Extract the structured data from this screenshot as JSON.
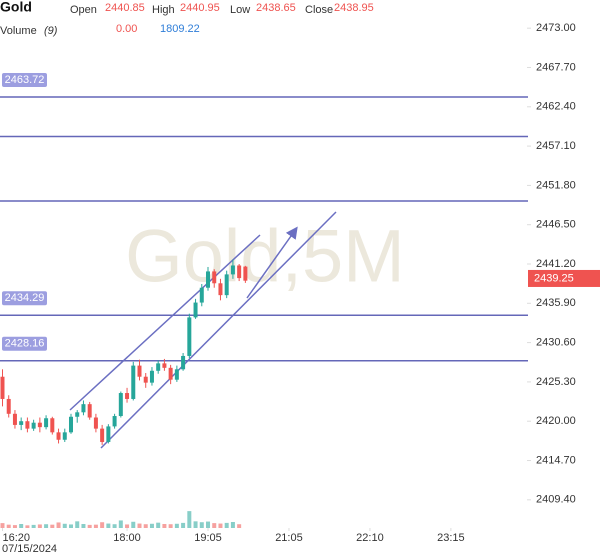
{
  "chart_data": {
    "type": "candlestick",
    "title": "Gold",
    "watermark": "Gold,5M",
    "legend_labels": {
      "open": "Open",
      "high": "High",
      "low": "Low",
      "close": "Close"
    },
    "volume_label": "Volume",
    "volume_period_label": "(9)",
    "volume_ma": 1809.22,
    "date_label": "07/15/2024",
    "up_color": "#26a69a",
    "down_color": "#ef5350",
    "level_color": "#6467b8",
    "open": [
      2426,
      2423,
      2421,
      2419.5,
      2420,
      2419,
      2419.8,
      2419.2,
      2420.4,
      2418.5,
      2417.5,
      2418.5,
      2420.6,
      2421.2,
      2422.3,
      2420.5,
      2419,
      2417.2,
      2419.3,
      2420.7,
      2423.8,
      2423,
      2427.5,
      2426,
      2425.2,
      2426.8,
      2427.8,
      2427.2,
      2425.6,
      2427,
      2428.8,
      2434,
      2436,
      2438,
      2440.2,
      2438.6,
      2437,
      2439.8,
      2441,
      2440.85
    ],
    "high": [
      2427,
      2423.5,
      2421.5,
      2420.5,
      2420.5,
      2420.2,
      2420.5,
      2420.8,
      2420.6,
      2419,
      2419,
      2421,
      2421.5,
      2422.8,
      2422.6,
      2421,
      2419.5,
      2419.6,
      2421,
      2424,
      2424.5,
      2428,
      2428.3,
      2426.5,
      2427.3,
      2428.2,
      2428.4,
      2427.6,
      2427.5,
      2429.2,
      2434.5,
      2436.5,
      2438.5,
      2440.8,
      2440.5,
      2439.2,
      2440.3,
      2441.8,
      2441.2,
      2440.95
    ],
    "low": [
      2422,
      2420.5,
      2419,
      2418.8,
      2418.5,
      2418.7,
      2418.5,
      2418.9,
      2418.2,
      2417,
      2417.2,
      2418.3,
      2419.8,
      2420.8,
      2420.2,
      2418.5,
      2416.8,
      2417,
      2419,
      2420.5,
      2422.5,
      2422.8,
      2425.5,
      2424.5,
      2424.8,
      2426.4,
      2426.8,
      2425,
      2425.3,
      2426.8,
      2428.5,
      2433.8,
      2435.5,
      2437.6,
      2438,
      2436.3,
      2436.6,
      2439.2,
      2438.9,
      2438.65
    ],
    "close": [
      2423,
      2421,
      2419.5,
      2420,
      2419,
      2419.8,
      2419.2,
      2420.4,
      2418.5,
      2417.5,
      2418.5,
      2420.6,
      2421.2,
      2422.3,
      2420.5,
      2419,
      2417.2,
      2419.3,
      2420.7,
      2423.8,
      2423,
      2427.5,
      2426,
      2425.2,
      2426.8,
      2427.8,
      2427.2,
      2425.6,
      2427,
      2428.8,
      2434,
      2436,
      2438,
      2440.2,
      2438.6,
      2437,
      2439.8,
      2441,
      2439.3,
      2438.95
    ],
    "volume": [
      2200,
      1500,
      1300,
      1800,
      1200,
      1400,
      1600,
      1700,
      1500,
      2500,
      1900,
      1600,
      3000,
      1800,
      1400,
      1500,
      2600,
      2000,
      1700,
      3400,
      1600,
      2800,
      2000,
      1700,
      1900,
      2400,
      1800,
      1700,
      1900,
      2300,
      7600,
      3000,
      2600,
      2900,
      2200,
      2000,
      2300,
      2700,
      1700,
      {
        "value": 0,
        "label": "0.00"
      }
    ],
    "volume_ylim": [
      0,
      45000
    ],
    "xlim": [
      -0.4,
      83.9
    ],
    "xticks": [
      {
        "value": 0,
        "label": "16:20"
      },
      {
        "value": 20,
        "label": "18:00"
      },
      {
        "value": 33,
        "label": "19:05"
      },
      {
        "value": 46,
        "label": "21:05"
      },
      {
        "value": 59,
        "label": "22:10"
      },
      {
        "value": 72,
        "label": "23:15"
      }
    ],
    "ylim": [
      2405.6,
      2476.8
    ],
    "yticks": [
      {
        "value": 2473,
        "label": "2473.00"
      },
      {
        "value": 2467.7,
        "label": "2467.70"
      },
      {
        "value": 2462.4,
        "label": "2462.40"
      },
      {
        "value": 2457.1,
        "label": "2457.10"
      },
      {
        "value": 2451.8,
        "label": "2451.80"
      },
      {
        "value": 2446.5,
        "label": "2446.50"
      },
      {
        "value": 2441.2,
        "label": "2441.20"
      },
      {
        "value": 2435.9,
        "label": "2435.90"
      },
      {
        "value": 2430.6,
        "label": "2430.60"
      },
      {
        "value": 2425.3,
        "label": "2425.30"
      },
      {
        "value": 2420,
        "label": "2420.00"
      },
      {
        "value": 2414.7,
        "label": "2414.70"
      },
      {
        "value": 2409.4,
        "label": "2409.40"
      }
    ],
    "price_lines": [
      {
        "value": 2463.72,
        "show_label": true
      },
      {
        "value": 2458.4,
        "show_label": false
      },
      {
        "value": 2449.7,
        "show_label": false
      },
      {
        "value": 2434.29,
        "show_label": true
      },
      {
        "value": 2428.16,
        "show_label": true
      }
    ],
    "last_price": 2439.25
  }
}
